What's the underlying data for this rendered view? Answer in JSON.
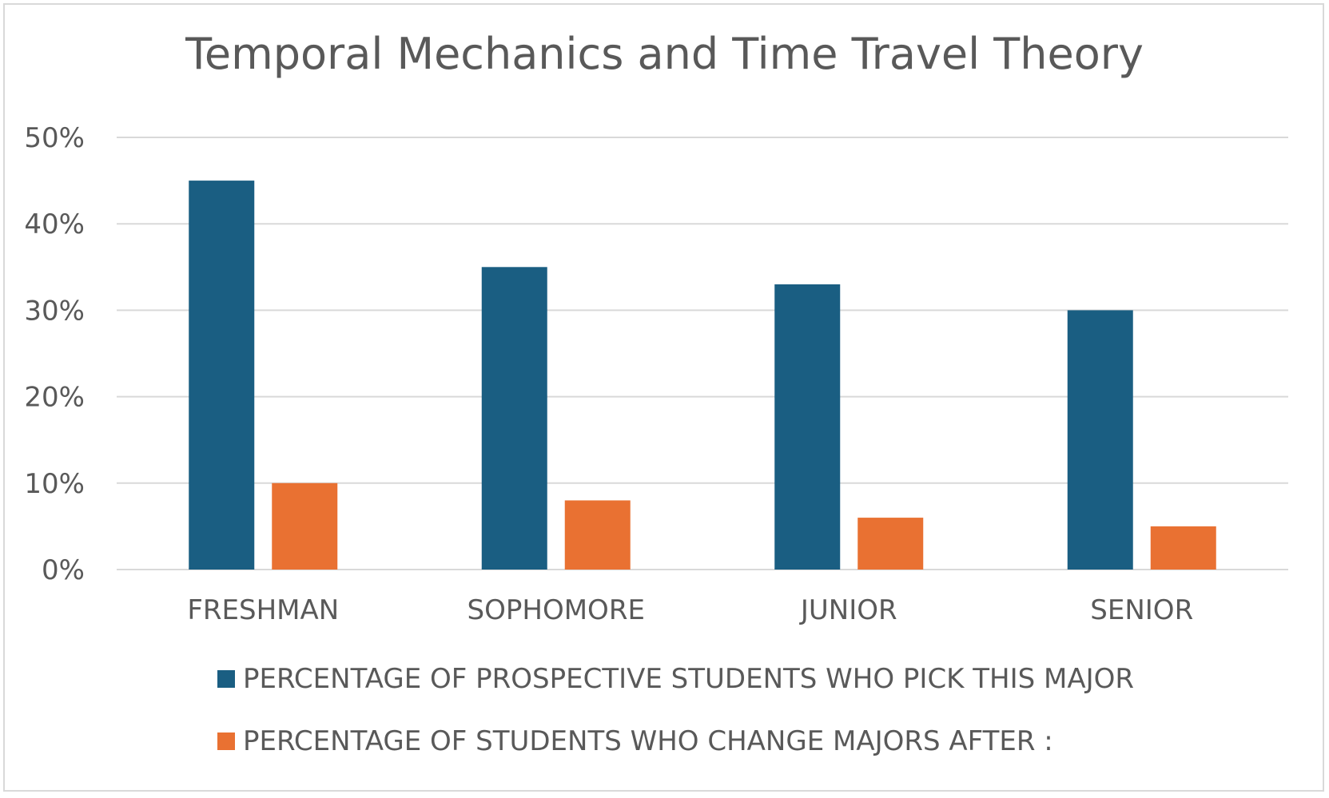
{
  "chart_data": {
    "type": "bar",
    "title": "Temporal Mechanics and Time Travel Theory",
    "categories": [
      "FRESHMAN",
      "SOPHOMORE",
      "JUNIOR",
      "SENIOR"
    ],
    "series": [
      {
        "name": "PERCENTAGE OF PROSPECTIVE STUDENTS WHO PICK THIS MAJOR",
        "values": [
          45,
          35,
          33,
          30
        ],
        "color": "#1a5e82"
      },
      {
        "name": "PERCENTAGE OF STUDENTS WHO CHANGE MAJORS AFTER :",
        "values": [
          10,
          8,
          6,
          5
        ],
        "color": "#e97132"
      }
    ],
    "yticks": [
      "0%",
      "10%",
      "20%",
      "30%",
      "40%",
      "50%"
    ],
    "ylim": [
      0,
      50
    ],
    "grid": true,
    "legend_position": "bottom",
    "xlabel": "",
    "ylabel": ""
  }
}
